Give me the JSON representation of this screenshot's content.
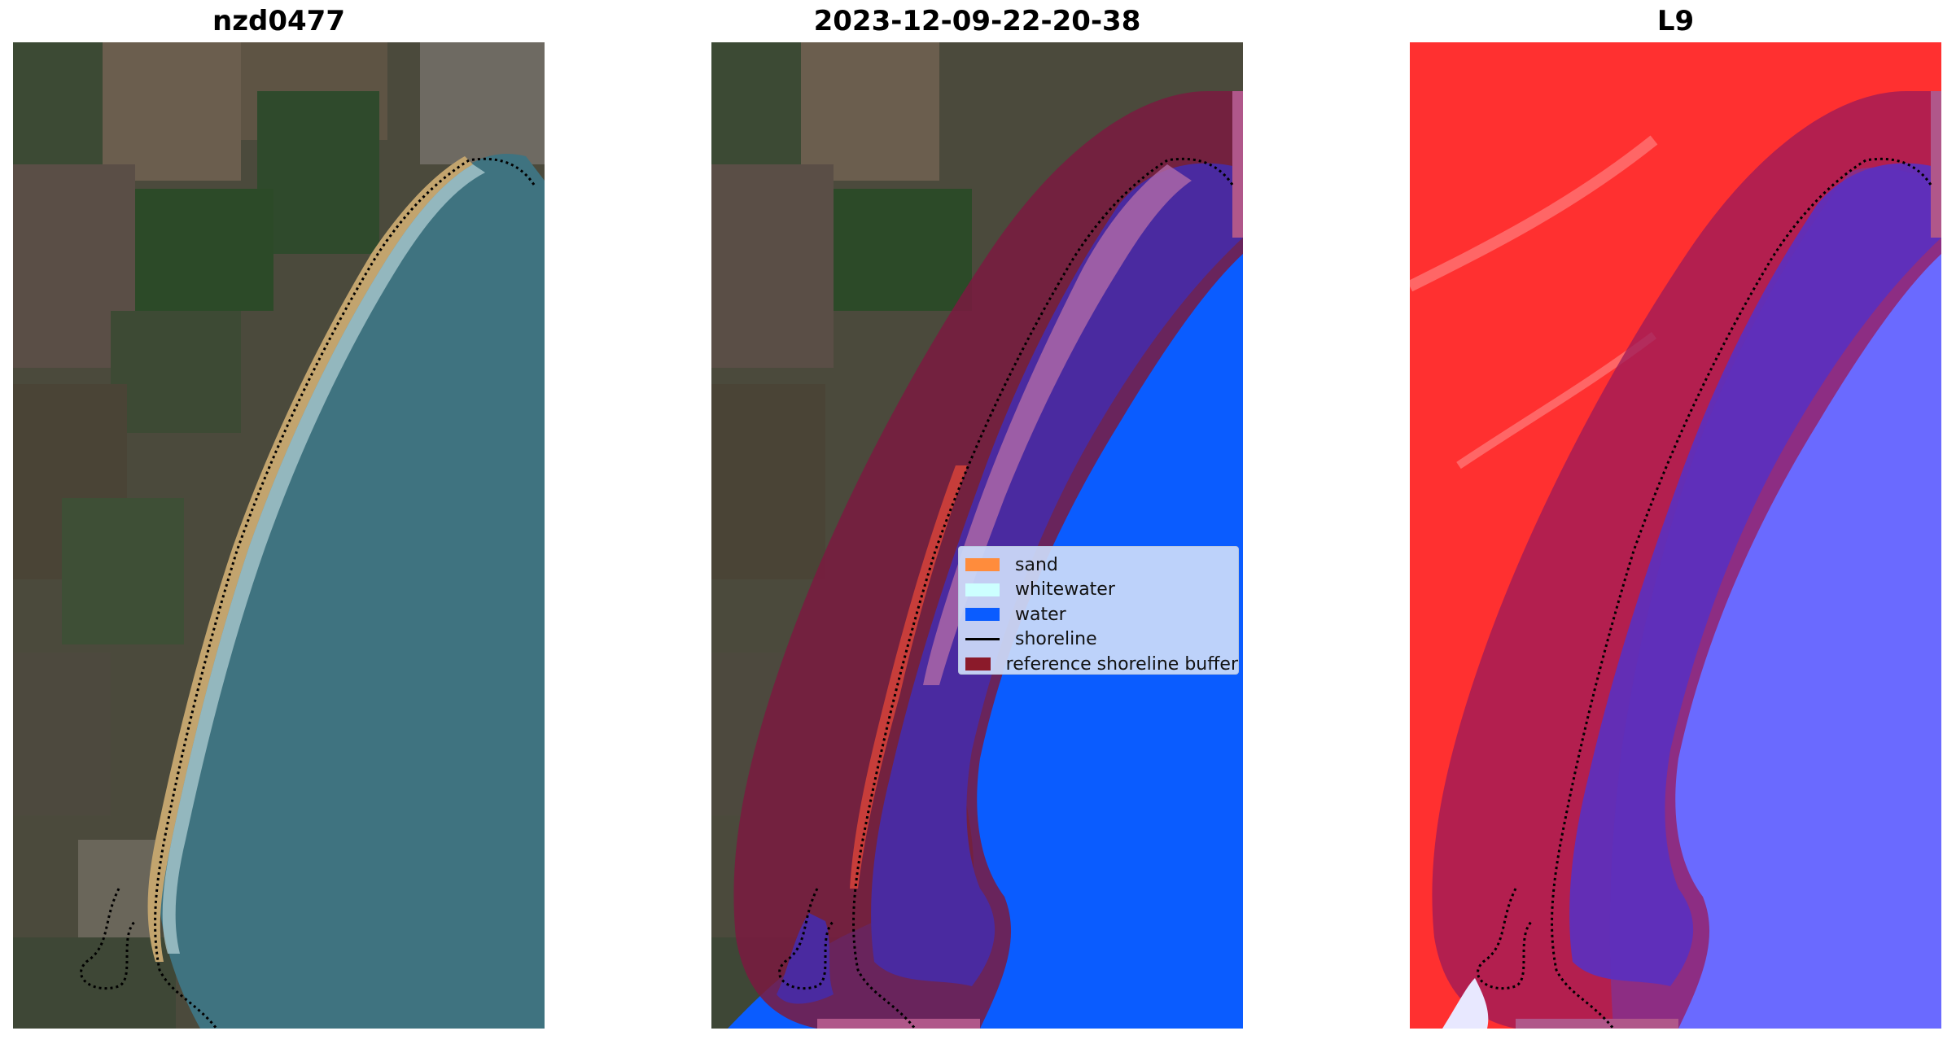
{
  "titles": {
    "left": "nzd0477",
    "middle": "2023-12-09-22-20-38",
    "right": "L9"
  },
  "legend": {
    "items": [
      {
        "label": "sand",
        "color": "#ff8c3c"
      },
      {
        "label": "whitewater",
        "color": "#ccffff"
      },
      {
        "label": "water",
        "color": "#0a5cff"
      },
      {
        "label": "shoreline",
        "color": "#000000"
      },
      {
        "label": "reference shoreline buffer",
        "color": "#8b1a2a"
      }
    ]
  }
}
